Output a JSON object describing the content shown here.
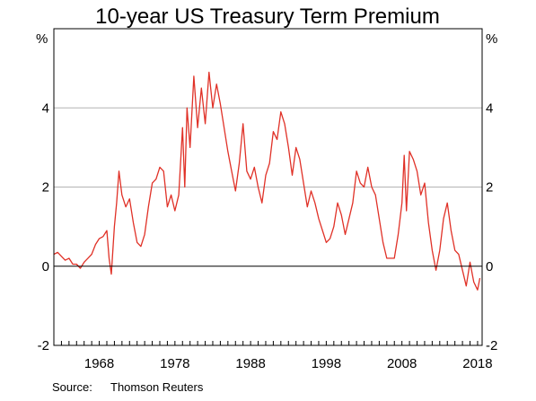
{
  "chart_data": {
    "type": "line",
    "title": "10-year US Treasury Term Premium",
    "y_unit_left": "%",
    "y_unit_right": "%",
    "xlim": [
      1962,
      2018.6
    ],
    "ylim": [
      -2,
      6
    ],
    "y_ticks": [
      -2,
      0,
      2,
      4
    ],
    "x_tick_labels": [
      "1968",
      "1978",
      "1988",
      "1998",
      "2008",
      "2018"
    ],
    "x_tick_label_years": [
      1968,
      1978,
      1988,
      1998,
      2008,
      2018
    ],
    "x_minor_tick_start": 1962,
    "x_minor_tick_end": 2018,
    "grid": true,
    "line_color": "#e03127",
    "axis_color": "#000000",
    "grid_color": "#b3b3b3",
    "source_label": "Source:",
    "source_text": "Thomson Reuters",
    "series": [
      {
        "points": [
          [
            1962.0,
            0.3
          ],
          [
            1962.5,
            0.35
          ],
          [
            1963.0,
            0.25
          ],
          [
            1963.5,
            0.15
          ],
          [
            1964.0,
            0.2
          ],
          [
            1964.5,
            0.05
          ],
          [
            1965.0,
            0.05
          ],
          [
            1965.5,
            -0.05
          ],
          [
            1966.0,
            0.1
          ],
          [
            1966.5,
            0.2
          ],
          [
            1967.0,
            0.3
          ],
          [
            1967.5,
            0.55
          ],
          [
            1968.0,
            0.7
          ],
          [
            1968.5,
            0.75
          ],
          [
            1969.0,
            0.9
          ],
          [
            1969.3,
            0.2
          ],
          [
            1969.6,
            -0.2
          ],
          [
            1970.0,
            1.0
          ],
          [
            1970.3,
            1.6
          ],
          [
            1970.6,
            2.4
          ],
          [
            1971.0,
            1.8
          ],
          [
            1971.5,
            1.5
          ],
          [
            1972.0,
            1.7
          ],
          [
            1972.5,
            1.1
          ],
          [
            1973.0,
            0.6
          ],
          [
            1973.5,
            0.5
          ],
          [
            1974.0,
            0.8
          ],
          [
            1974.5,
            1.5
          ],
          [
            1975.0,
            2.1
          ],
          [
            1975.5,
            2.2
          ],
          [
            1976.0,
            2.5
          ],
          [
            1976.5,
            2.4
          ],
          [
            1977.0,
            1.5
          ],
          [
            1977.5,
            1.8
          ],
          [
            1978.0,
            1.4
          ],
          [
            1978.5,
            1.8
          ],
          [
            1979.0,
            3.5
          ],
          [
            1979.3,
            2.0
          ],
          [
            1979.6,
            4.0
          ],
          [
            1980.0,
            3.0
          ],
          [
            1980.5,
            4.8
          ],
          [
            1981.0,
            3.5
          ],
          [
            1981.5,
            4.5
          ],
          [
            1982.0,
            3.6
          ],
          [
            1982.5,
            4.9
          ],
          [
            1983.0,
            4.0
          ],
          [
            1983.5,
            4.6
          ],
          [
            1984.0,
            4.1
          ],
          [
            1984.5,
            3.5
          ],
          [
            1985.0,
            2.9
          ],
          [
            1985.5,
            2.4
          ],
          [
            1986.0,
            1.9
          ],
          [
            1986.5,
            2.6
          ],
          [
            1987.0,
            3.6
          ],
          [
            1987.5,
            2.4
          ],
          [
            1988.0,
            2.2
          ],
          [
            1988.5,
            2.5
          ],
          [
            1989.0,
            2.0
          ],
          [
            1989.5,
            1.6
          ],
          [
            1990.0,
            2.3
          ],
          [
            1990.5,
            2.6
          ],
          [
            1991.0,
            3.4
          ],
          [
            1991.5,
            3.2
          ],
          [
            1992.0,
            3.9
          ],
          [
            1992.5,
            3.6
          ],
          [
            1993.0,
            3.0
          ],
          [
            1993.5,
            2.3
          ],
          [
            1994.0,
            3.0
          ],
          [
            1994.5,
            2.7
          ],
          [
            1995.0,
            2.1
          ],
          [
            1995.5,
            1.5
          ],
          [
            1996.0,
            1.9
          ],
          [
            1996.5,
            1.6
          ],
          [
            1997.0,
            1.2
          ],
          [
            1997.5,
            0.9
          ],
          [
            1998.0,
            0.6
          ],
          [
            1998.5,
            0.7
          ],
          [
            1999.0,
            1.0
          ],
          [
            1999.5,
            1.6
          ],
          [
            2000.0,
            1.3
          ],
          [
            2000.5,
            0.8
          ],
          [
            2001.0,
            1.2
          ],
          [
            2001.5,
            1.6
          ],
          [
            2002.0,
            2.4
          ],
          [
            2002.5,
            2.1
          ],
          [
            2003.0,
            2.0
          ],
          [
            2003.5,
            2.5
          ],
          [
            2004.0,
            2.0
          ],
          [
            2004.5,
            1.8
          ],
          [
            2005.0,
            1.2
          ],
          [
            2005.5,
            0.6
          ],
          [
            2006.0,
            0.2
          ],
          [
            2006.5,
            0.2
          ],
          [
            2007.0,
            0.2
          ],
          [
            2007.5,
            0.8
          ],
          [
            2008.0,
            1.6
          ],
          [
            2008.3,
            2.8
          ],
          [
            2008.6,
            1.4
          ],
          [
            2009.0,
            2.9
          ],
          [
            2009.5,
            2.7
          ],
          [
            2010.0,
            2.4
          ],
          [
            2010.5,
            1.8
          ],
          [
            2011.0,
            2.1
          ],
          [
            2011.5,
            1.1
          ],
          [
            2012.0,
            0.4
          ],
          [
            2012.5,
            -0.1
          ],
          [
            2013.0,
            0.4
          ],
          [
            2013.5,
            1.2
          ],
          [
            2014.0,
            1.6
          ],
          [
            2014.5,
            0.9
          ],
          [
            2015.0,
            0.4
          ],
          [
            2015.5,
            0.3
          ],
          [
            2016.0,
            -0.1
          ],
          [
            2016.5,
            -0.5
          ],
          [
            2017.0,
            0.1
          ],
          [
            2017.5,
            -0.4
          ],
          [
            2018.0,
            -0.6
          ],
          [
            2018.3,
            -0.3
          ]
        ]
      }
    ]
  }
}
